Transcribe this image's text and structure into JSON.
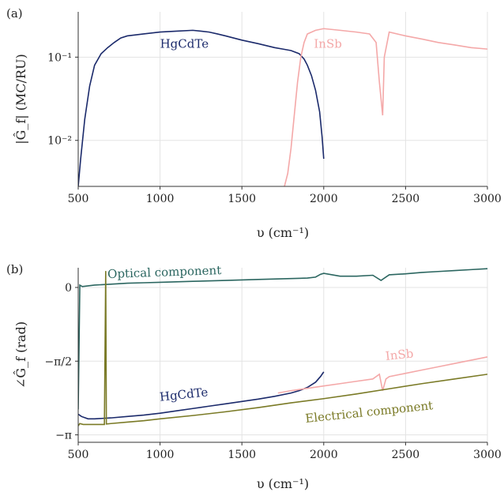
{
  "chart_data": [
    {
      "panel_label": "(a)",
      "type": "line",
      "xlabel": "υ (cm⁻¹)",
      "ylabel": "|Ĝ_f| (MC/RU)",
      "y_scale": "log",
      "xlim": [
        500,
        3000
      ],
      "ylim": [
        0.0028,
        0.35
      ],
      "xticks": [
        500,
        1000,
        1500,
        2000,
        2500,
        3000
      ],
      "yticks": [
        {
          "value": 0.01,
          "label": "10⁻²"
        },
        {
          "value": 0.1,
          "label": "10⁻¹"
        }
      ],
      "grid": true,
      "series": [
        {
          "name": "HgCdTe",
          "color": "#1b2a6b",
          "x": [
            500,
            515,
            540,
            570,
            600,
            640,
            680,
            720,
            760,
            800,
            900,
            1000,
            1100,
            1200,
            1250,
            1300,
            1350,
            1400,
            1500,
            1600,
            1700,
            1750,
            1800,
            1850,
            1880,
            1900,
            1925,
            1950,
            1975,
            1990,
            2000
          ],
          "y": [
            0.0028,
            0.006,
            0.018,
            0.045,
            0.08,
            0.11,
            0.13,
            0.15,
            0.17,
            0.18,
            0.19,
            0.2,
            0.205,
            0.21,
            0.205,
            0.2,
            0.19,
            0.18,
            0.16,
            0.145,
            0.13,
            0.125,
            0.12,
            0.11,
            0.095,
            0.08,
            0.06,
            0.04,
            0.022,
            0.011,
            0.006
          ]
        },
        {
          "name": "InSb",
          "color": "#f4a8a8",
          "x": [
            1760,
            1780,
            1800,
            1820,
            1840,
            1860,
            1880,
            1900,
            1950,
            2000,
            2100,
            2200,
            2280,
            2320,
            2340,
            2360,
            2370,
            2400,
            2500,
            2600,
            2700,
            2800,
            2900,
            3000
          ],
          "y": [
            0.0028,
            0.004,
            0.008,
            0.02,
            0.05,
            0.1,
            0.15,
            0.19,
            0.21,
            0.22,
            0.21,
            0.2,
            0.19,
            0.15,
            0.05,
            0.02,
            0.1,
            0.2,
            0.18,
            0.165,
            0.15,
            0.14,
            0.13,
            0.125
          ]
        }
      ],
      "annotations": [
        {
          "text": "HgCdTe",
          "x": 1000,
          "y": 0.13,
          "color": "#1b2a6b"
        },
        {
          "text": "InSb",
          "x": 1940,
          "y": 0.13,
          "color": "#f4a8a8"
        }
      ]
    },
    {
      "panel_label": "(b)",
      "type": "line",
      "xlabel": "υ (cm⁻¹)",
      "ylabel": "∠Ĝ_f (rad)",
      "xlim": [
        500,
        3000
      ],
      "ylim": [
        -3.3,
        0.42
      ],
      "xticks": [
        500,
        1000,
        1500,
        2000,
        2500,
        3000
      ],
      "yticks": [
        {
          "value": 0,
          "label": "0"
        },
        {
          "value": -1.5708,
          "label": "−π/2"
        },
        {
          "value": -3.1416,
          "label": "−π"
        }
      ],
      "grid": true,
      "series": [
        {
          "name": "Optical component",
          "color": "#2b6660",
          "x": [
            500,
            510,
            525,
            600,
            700,
            800,
            900,
            1000,
            1200,
            1400,
            1600,
            1800,
            1900,
            1950,
            1980,
            2000,
            2100,
            2200,
            2300,
            2350,
            2400,
            2500,
            2600,
            2700,
            2800,
            2900,
            3000
          ],
          "y": [
            -2.6,
            0.05,
            0.02,
            0.05,
            0.07,
            0.09,
            0.1,
            0.11,
            0.13,
            0.15,
            0.17,
            0.19,
            0.2,
            0.22,
            0.28,
            0.3,
            0.24,
            0.24,
            0.26,
            0.15,
            0.27,
            0.29,
            0.32,
            0.34,
            0.36,
            0.38,
            0.4
          ]
        },
        {
          "name": "HgCdTe",
          "color": "#1b2a6b",
          "x": [
            500,
            520,
            560,
            600,
            700,
            800,
            900,
            1000,
            1100,
            1200,
            1300,
            1400,
            1500,
            1600,
            1700,
            1800,
            1850,
            1900,
            1950,
            1980,
            2000
          ],
          "y": [
            -2.7,
            -2.75,
            -2.8,
            -2.8,
            -2.78,
            -2.75,
            -2.72,
            -2.68,
            -2.63,
            -2.58,
            -2.53,
            -2.48,
            -2.43,
            -2.38,
            -2.32,
            -2.25,
            -2.2,
            -2.13,
            -2.02,
            -1.9,
            -1.8
          ]
        },
        {
          "name": "InSb",
          "color": "#f4a8a8",
          "x": [
            1720,
            1800,
            1900,
            2000,
            2100,
            2200,
            2300,
            2340,
            2360,
            2380,
            2400,
            2500,
            2600,
            2700,
            2800,
            2900,
            3000
          ],
          "y": [
            -2.25,
            -2.2,
            -2.15,
            -2.1,
            -2.05,
            -2.0,
            -1.95,
            -1.85,
            -2.2,
            -1.95,
            -1.9,
            -1.83,
            -1.76,
            -1.69,
            -1.62,
            -1.55,
            -1.48
          ]
        },
        {
          "name": "Electrical component",
          "color": "#7a7a26",
          "x": [
            500,
            510,
            530,
            600,
            660,
            668,
            672,
            700,
            800,
            900,
            1000,
            1200,
            1400,
            1600,
            1800,
            2000,
            2200,
            2400,
            2600,
            2800,
            3000
          ],
          "y": [
            -2.95,
            -2.9,
            -2.92,
            -2.92,
            -2.92,
            0.35,
            -2.91,
            -2.9,
            -2.87,
            -2.84,
            -2.8,
            -2.73,
            -2.65,
            -2.56,
            -2.46,
            -2.37,
            -2.27,
            -2.16,
            -2.05,
            -1.95,
            -1.85
          ]
        }
      ],
      "annotations": [
        {
          "text": "Optical component",
          "x": 680,
          "y": 0.2,
          "color": "#2b6660",
          "rotate": -2
        },
        {
          "text": "HgCdTe",
          "x": 1000,
          "y": -2.42,
          "color": "#1b2a6b",
          "rotate": -6
        },
        {
          "text": "InSb",
          "x": 2380,
          "y": -1.55,
          "color": "#f4a8a8",
          "rotate": -6
        },
        {
          "text": "Electrical component",
          "x": 1890,
          "y": -2.88,
          "color": "#7a7a26",
          "rotate": -6
        }
      ]
    }
  ]
}
